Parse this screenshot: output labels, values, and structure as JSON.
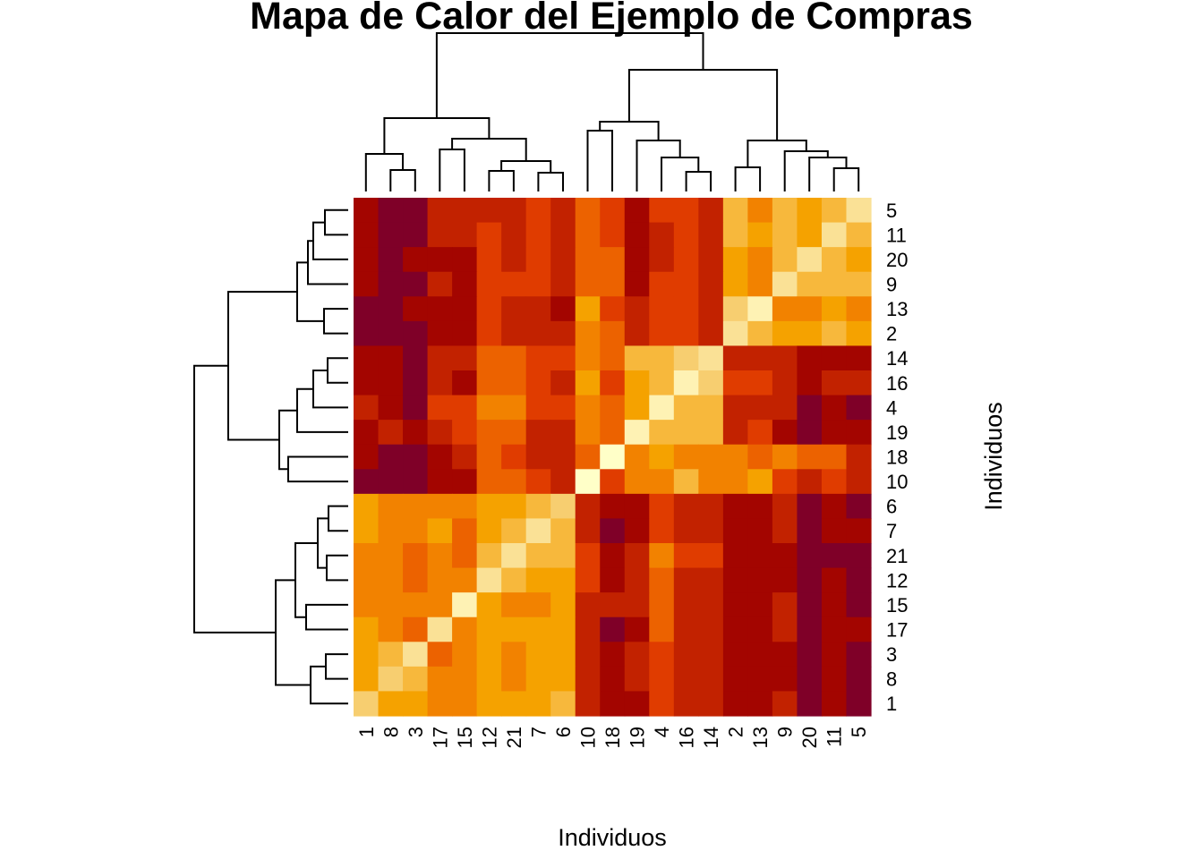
{
  "chart_data": {
    "type": "heatmap",
    "title": "Mapa de Calor del Ejemplo de Compras",
    "xlabel": "Individuos",
    "ylabel": "Individuos",
    "x_labels": [
      "1",
      "8",
      "3",
      "17",
      "15",
      "12",
      "21",
      "7",
      "6",
      "10",
      "18",
      "19",
      "4",
      "16",
      "14",
      "2",
      "13",
      "9",
      "20",
      "11",
      "5"
    ],
    "y_labels": [
      "5",
      "11",
      "20",
      "9",
      "13",
      "2",
      "14",
      "16",
      "4",
      "19",
      "18",
      "10",
      "6",
      "7",
      "21",
      "12",
      "15",
      "17",
      "3",
      "8",
      "1"
    ],
    "color_scale": [
      "#7F0028",
      "#A30500",
      "#C22200",
      "#E03C00",
      "#EC6200",
      "#F28200",
      "#F5A200",
      "#F7B83C",
      "#F7CE70",
      "#FAE196",
      "#FEF2B4",
      "#FFFFC8"
    ],
    "values": [
      [
        1,
        0,
        0,
        2,
        2,
        2,
        2,
        3,
        2,
        4,
        3,
        1,
        3,
        3,
        2,
        7,
        5,
        7,
        6,
        7,
        9
      ],
      [
        1,
        0,
        0,
        2,
        2,
        3,
        2,
        3,
        2,
        4,
        3,
        1,
        2,
        3,
        2,
        7,
        6,
        7,
        6,
        9,
        7
      ],
      [
        1,
        0,
        1,
        1,
        1,
        3,
        2,
        3,
        2,
        4,
        4,
        1,
        2,
        3,
        2,
        6,
        5,
        7,
        9,
        7,
        6
      ],
      [
        1,
        0,
        0,
        2,
        1,
        3,
        3,
        3,
        2,
        4,
        4,
        1,
        3,
        3,
        2,
        6,
        5,
        9,
        7,
        7,
        7
      ],
      [
        0,
        0,
        1,
        1,
        1,
        3,
        2,
        2,
        1,
        6,
        3,
        2,
        3,
        3,
        2,
        8,
        10,
        5,
        5,
        6,
        5
      ],
      [
        0,
        0,
        0,
        1,
        1,
        3,
        2,
        2,
        2,
        5,
        4,
        2,
        3,
        3,
        2,
        9,
        7,
        6,
        6,
        7,
        6
      ],
      [
        1,
        1,
        0,
        2,
        2,
        4,
        4,
        3,
        3,
        5,
        4,
        7,
        7,
        8,
        9,
        2,
        2,
        2,
        1,
        1,
        1
      ],
      [
        1,
        1,
        0,
        2,
        1,
        4,
        4,
        3,
        2,
        6,
        3,
        6,
        7,
        10,
        8,
        3,
        3,
        2,
        1,
        2,
        2
      ],
      [
        2,
        1,
        0,
        3,
        3,
        5,
        5,
        3,
        3,
        5,
        4,
        6,
        10,
        7,
        7,
        2,
        2,
        2,
        0,
        1,
        0
      ],
      [
        1,
        2,
        1,
        2,
        3,
        4,
        4,
        2,
        2,
        5,
        4,
        10,
        7,
        7,
        7,
        2,
        3,
        1,
        0,
        1,
        1
      ],
      [
        1,
        0,
        0,
        1,
        2,
        4,
        3,
        2,
        2,
        4,
        11,
        5,
        6,
        5,
        5,
        5,
        4,
        5,
        4,
        4,
        2
      ],
      [
        0,
        0,
        0,
        1,
        1,
        4,
        4,
        3,
        2,
        11,
        3,
        5,
        5,
        7,
        5,
        5,
        6,
        3,
        2,
        3,
        2
      ],
      [
        6,
        5,
        5,
        5,
        5,
        6,
        6,
        7,
        8,
        2,
        1,
        1,
        3,
        2,
        2,
        1,
        1,
        2,
        0,
        1,
        0
      ],
      [
        6,
        5,
        5,
        6,
        4,
        6,
        7,
        9,
        7,
        2,
        0,
        1,
        3,
        2,
        2,
        1,
        1,
        2,
        0,
        1,
        1
      ],
      [
        5,
        5,
        4,
        5,
        4,
        7,
        9,
        7,
        7,
        3,
        1,
        2,
        5,
        3,
        3,
        1,
        1,
        1,
        0,
        0,
        0
      ],
      [
        5,
        5,
        4,
        5,
        5,
        9,
        7,
        6,
        6,
        3,
        1,
        2,
        4,
        2,
        2,
        1,
        1,
        1,
        0,
        1,
        0
      ],
      [
        5,
        5,
        5,
        5,
        10,
        6,
        5,
        5,
        6,
        2,
        2,
        2,
        4,
        2,
        2,
        1,
        1,
        2,
        0,
        1,
        0
      ],
      [
        6,
        5,
        4,
        9,
        5,
        6,
        6,
        6,
        6,
        2,
        0,
        1,
        4,
        2,
        2,
        1,
        1,
        2,
        0,
        1,
        1
      ],
      [
        6,
        7,
        9,
        4,
        5,
        6,
        5,
        6,
        6,
        2,
        1,
        2,
        3,
        2,
        2,
        1,
        1,
        1,
        0,
        1,
        0
      ],
      [
        6,
        8,
        7,
        5,
        5,
        6,
        5,
        6,
        6,
        2,
        1,
        2,
        3,
        2,
        2,
        1,
        1,
        1,
        0,
        1,
        0
      ],
      [
        8,
        6,
        6,
        5,
        5,
        6,
        6,
        6,
        7,
        2,
        1,
        1,
        3,
        2,
        2,
        1,
        1,
        2,
        0,
        1,
        0
      ]
    ],
    "dendrograms": {
      "rows": true,
      "columns": true
    },
    "legend": "none",
    "grid": false
  }
}
